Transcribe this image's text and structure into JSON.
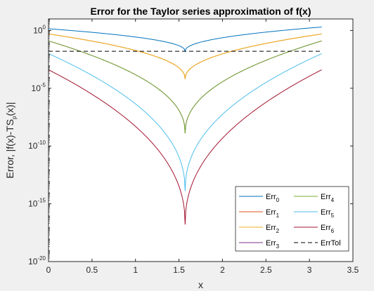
{
  "chart_data": {
    "type": "line",
    "title": "Error for the Taylor series approximation of f(x)",
    "xlabel": "x",
    "ylabel_main": "Error, |f(x)-TS",
    "ylabel_sub": "p",
    "ylabel_tail": "(x)|",
    "xlim": [
      0,
      3.5
    ],
    "ylim_log10": [
      -20,
      1
    ],
    "yscale": "log",
    "xticks": [
      "0",
      "0.5",
      "1",
      "1.5",
      "2",
      "2.5",
      "3",
      "3.5"
    ],
    "yticks": [
      {
        "base": "10",
        "exp": "-20"
      },
      {
        "base": "10",
        "exp": "-15"
      },
      {
        "base": "10",
        "exp": "-10"
      },
      {
        "base": "10",
        "exp": "-5"
      },
      {
        "base": "10",
        "exp": "0"
      }
    ],
    "legend_position": "bottom-right",
    "x_range": [
      0,
      3.1416
    ],
    "center_x": 1.5708,
    "series": [
      {
        "name": "Err",
        "sub": "0",
        "color": "#0072BD",
        "dash": "solid",
        "order": 0,
        "log10_at_x0": 0.15,
        "log10_at_center": -1.8,
        "log10_at_xmax": 0.3
      },
      {
        "name": "Err",
        "sub": "1",
        "color": "#D95319",
        "dash": "solid",
        "order": 1,
        "log10_at_x0": -0.3,
        "log10_at_center": -4.2,
        "log10_at_xmax": -0.3
      },
      {
        "name": "Err",
        "sub": "2",
        "color": "#EDB120",
        "dash": "solid",
        "order": 2,
        "log10_at_x0": -0.3,
        "log10_at_center": -4.2,
        "log10_at_xmax": -0.3
      },
      {
        "name": "Err",
        "sub": "3",
        "color": "#7E2F8E",
        "dash": "solid",
        "order": 3,
        "log10_at_x0": -0.9,
        "log10_at_center": -8.9,
        "log10_at_xmax": -0.9
      },
      {
        "name": "Err",
        "sub": "4",
        "color": "#77AC30",
        "dash": "solid",
        "order": 4,
        "log10_at_x0": -0.9,
        "log10_at_center": -8.9,
        "log10_at_xmax": -0.9
      },
      {
        "name": "Err",
        "sub": "5",
        "color": "#4DBEEE",
        "dash": "solid",
        "order": 5,
        "log10_at_x0": -2.0,
        "log10_at_center": -13.9,
        "log10_at_xmax": -2.0
      },
      {
        "name": "Err",
        "sub": "6",
        "color": "#A2142F",
        "dash": "solid",
        "order": 6,
        "log10_at_x0": -3.4,
        "log10_at_center": -16.8,
        "log10_at_xmax": -3.4
      },
      {
        "name": "ErrTol",
        "sub": "",
        "color": "#000000",
        "dash": "dashed",
        "order": 7,
        "constant_log10": -1.8
      }
    ],
    "legend_layout": [
      [
        "0",
        "4"
      ],
      [
        "1",
        "5"
      ],
      [
        "2",
        "6"
      ],
      [
        "3",
        "tol"
      ]
    ],
    "colors": {
      "figure_bg": "#f0f0f0",
      "axes_bg": "#ffffff",
      "axis": "#262626"
    }
  }
}
